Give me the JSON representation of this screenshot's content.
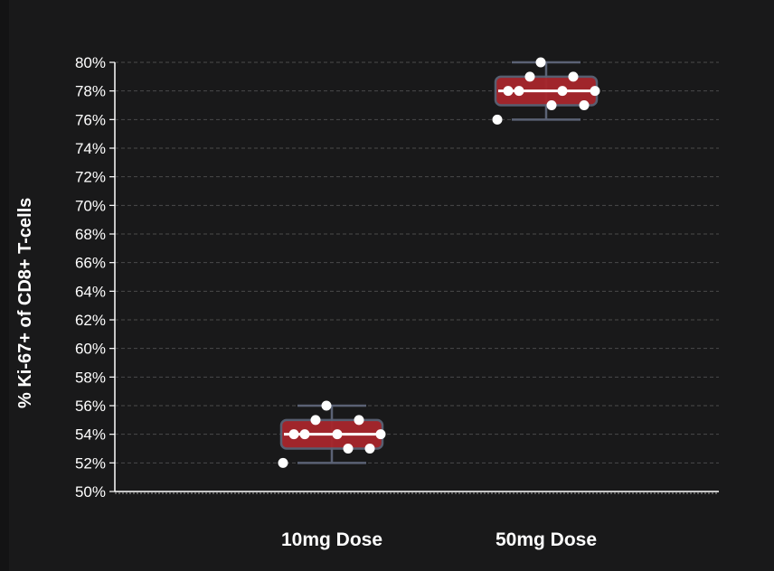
{
  "chart_data": {
    "type": "box",
    "title": "",
    "xlabel": "",
    "ylabel": "% Ki-67+ of CD8+ T-cells",
    "ylim": [
      50,
      80
    ],
    "yticks": [
      "80%",
      "78%",
      "76%",
      "74%",
      "72%",
      "70%",
      "68%",
      "66%",
      "64%",
      "62%",
      "60%",
      "58%",
      "56%",
      "54%",
      "52%",
      "50%"
    ],
    "ytick_values": [
      80,
      78,
      76,
      74,
      72,
      70,
      68,
      66,
      64,
      62,
      60,
      58,
      56,
      54,
      52,
      50
    ],
    "grid": "horizontal dashed",
    "categories": [
      "10mg Dose",
      "50mg Dose"
    ],
    "groups": [
      {
        "name": "10mg Dose",
        "whisker_low": 52,
        "q1": 53,
        "median": 54,
        "q3": 55,
        "whisker_high": 56,
        "points": [
          52,
          54,
          54,
          55,
          56,
          54,
          53,
          55,
          53,
          54
        ]
      },
      {
        "name": "50mg Dose",
        "whisker_low": 76,
        "q1": 77,
        "median": 78,
        "q3": 79,
        "whisker_high": 80,
        "points": [
          76,
          78,
          78,
          79,
          80,
          77,
          78,
          79,
          77,
          78
        ]
      }
    ],
    "colors": {
      "box_fill": "#a8262c",
      "box_stroke": "#5b6275",
      "median": "#ffffff",
      "whisker": "#5b6275",
      "points": "#ffffff",
      "grid": "#4a4a4a",
      "axis": "#ffffff",
      "text": "#ffffff"
    }
  }
}
